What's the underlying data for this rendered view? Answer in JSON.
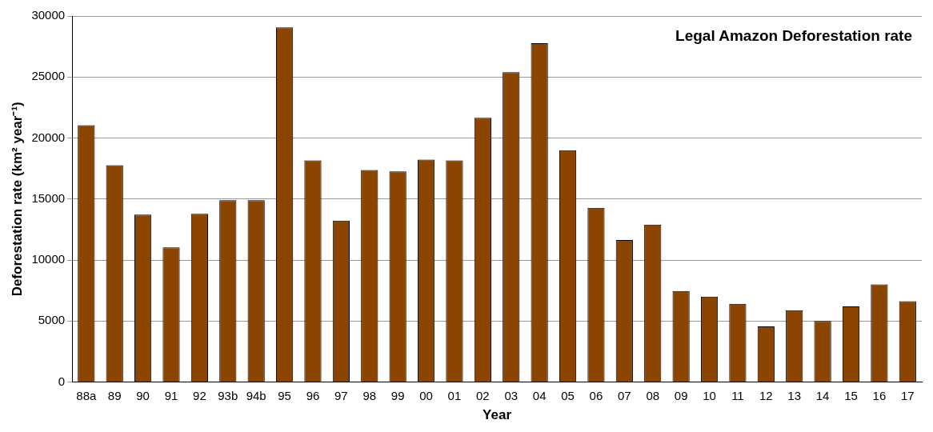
{
  "chart_data": {
    "type": "bar",
    "title": "Legal Amazon Deforestation rate",
    "xlabel": "Year",
    "ylabel": "Deforestation rate (km² year⁻¹)",
    "categories": [
      "88a",
      "89",
      "90",
      "91",
      "92",
      "93b",
      "94b",
      "95",
      "96",
      "97",
      "98",
      "99",
      "00",
      "01",
      "02",
      "03",
      "04",
      "05",
      "06",
      "07",
      "08",
      "09",
      "10",
      "11",
      "12",
      "13",
      "14",
      "15",
      "16",
      "17"
    ],
    "values": [
      21050,
      17770,
      13730,
      11030,
      13790,
      14900,
      14900,
      29060,
      18160,
      13230,
      17380,
      17260,
      18230,
      18170,
      21650,
      25400,
      27770,
      19010,
      14290,
      11650,
      12910,
      7460,
      7000,
      6420,
      4570,
      5890,
      5010,
      6210,
      8000,
      6620
    ],
    "color": "#8b4500",
    "ylim": [
      0,
      30000
    ],
    "yticks": [
      0,
      5000,
      10000,
      15000,
      20000,
      25000,
      30000
    ],
    "grid": "y",
    "legend": false
  }
}
